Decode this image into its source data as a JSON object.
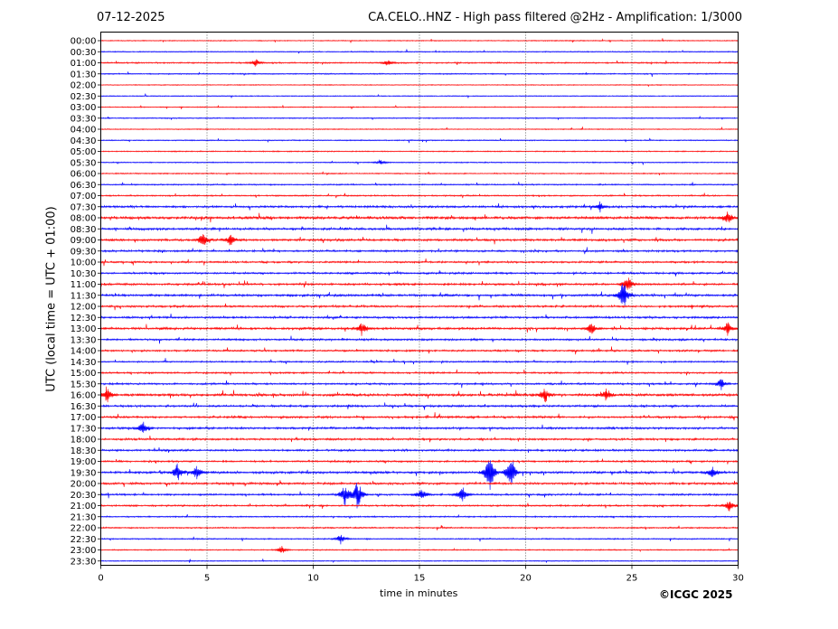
{
  "header": {
    "date": "07-12-2025",
    "title": "CA.CELO..HNZ - High pass filtered @2Hz - Amplification: 1/3000"
  },
  "footer": {
    "copyright": "©ICGC 2025"
  },
  "colors": {
    "red_trace": "#ff0000",
    "blue_trace": "#0000ff",
    "grid": "#000000",
    "background": "#ffffff"
  },
  "chart_data": {
    "type": "line",
    "chart_kind": "helicorder seismogram",
    "xlabel": "time in minutes",
    "ylabel": "UTC (local time = UTC + 01:00)",
    "xlim": [
      0,
      30
    ],
    "x_ticks": [
      0,
      5,
      10,
      15,
      20,
      25,
      30
    ],
    "grid": "vertical dotted lines at 5, 10, 15, 20, 25",
    "row_labels": [
      "00:00",
      "00:30",
      "01:00",
      "01:30",
      "02:00",
      "02:30",
      "03:00",
      "03:30",
      "04:00",
      "04:30",
      "05:00",
      "05:30",
      "06:00",
      "06:30",
      "07:00",
      "07:30",
      "08:00",
      "08:30",
      "09:00",
      "09:30",
      "10:00",
      "10:30",
      "11:00",
      "11:30",
      "12:00",
      "12:30",
      "13:00",
      "13:30",
      "14:00",
      "14:30",
      "15:00",
      "15:30",
      "16:00",
      "16:30",
      "17:00",
      "17:30",
      "18:00",
      "18:30",
      "19:00",
      "19:30",
      "20:00",
      "20:30",
      "21:00",
      "21:30",
      "22:00",
      "22:30",
      "23:00",
      "23:30"
    ],
    "trace_colors": [
      "red",
      "blue"
    ],
    "activity_level": [
      0.1,
      0.15,
      0.25,
      0.2,
      0.08,
      0.08,
      0.1,
      0.15,
      0.1,
      0.15,
      0.15,
      0.15,
      0.15,
      0.25,
      0.25,
      0.5,
      0.75,
      0.6,
      0.55,
      0.45,
      0.4,
      0.45,
      0.5,
      0.6,
      0.5,
      0.5,
      0.6,
      0.45,
      0.4,
      0.3,
      0.35,
      0.4,
      0.7,
      0.5,
      0.5,
      0.5,
      0.45,
      0.45,
      0.4,
      0.6,
      0.5,
      0.4,
      0.35,
      0.25,
      0.25,
      0.2,
      0.15,
      0.08
    ],
    "events": [
      {
        "row": "01:00",
        "minute": 7.3,
        "amp": 0.5
      },
      {
        "row": "01:00",
        "minute": 13.5,
        "amp": 0.4
      },
      {
        "row": "05:30",
        "minute": 13.2,
        "amp": 0.3
      },
      {
        "row": "07:30",
        "minute": 23.5,
        "amp": 0.6
      },
      {
        "row": "08:00",
        "minute": 29.5,
        "amp": 0.8
      },
      {
        "row": "09:00",
        "minute": 4.8,
        "amp": 1.0
      },
      {
        "row": "09:00",
        "minute": 6.1,
        "amp": 0.8
      },
      {
        "row": "11:00",
        "minute": 24.8,
        "amp": 1.2
      },
      {
        "row": "11:30",
        "minute": 24.6,
        "amp": 2.0
      },
      {
        "row": "13:00",
        "minute": 12.3,
        "amp": 0.8
      },
      {
        "row": "13:00",
        "minute": 23.1,
        "amp": 0.9
      },
      {
        "row": "13:00",
        "minute": 29.5,
        "amp": 0.8
      },
      {
        "row": "15:30",
        "minute": 29.2,
        "amp": 0.8
      },
      {
        "row": "16:00",
        "minute": 0.3,
        "amp": 1.0
      },
      {
        "row": "16:00",
        "minute": 20.9,
        "amp": 1.0
      },
      {
        "row": "16:00",
        "minute": 23.8,
        "amp": 0.9
      },
      {
        "row": "17:30",
        "minute": 2.0,
        "amp": 1.0
      },
      {
        "row": "19:30",
        "minute": 3.6,
        "amp": 1.2
      },
      {
        "row": "19:30",
        "minute": 4.5,
        "amp": 1.0
      },
      {
        "row": "19:30",
        "minute": 18.3,
        "amp": 3.0
      },
      {
        "row": "19:30",
        "minute": 19.3,
        "amp": 2.5
      },
      {
        "row": "19:30",
        "minute": 28.8,
        "amp": 0.8
      },
      {
        "row": "20:30",
        "minute": 11.5,
        "amp": 1.5
      },
      {
        "row": "20:30",
        "minute": 12.1,
        "amp": 2.0
      },
      {
        "row": "20:30",
        "minute": 15.1,
        "amp": 1.0
      },
      {
        "row": "20:30",
        "minute": 17.0,
        "amp": 1.2
      },
      {
        "row": "21:00",
        "minute": 29.6,
        "amp": 0.8
      },
      {
        "row": "22:30",
        "minute": 11.3,
        "amp": 0.6
      },
      {
        "row": "23:00",
        "minute": 8.5,
        "amp": 0.5
      }
    ]
  }
}
